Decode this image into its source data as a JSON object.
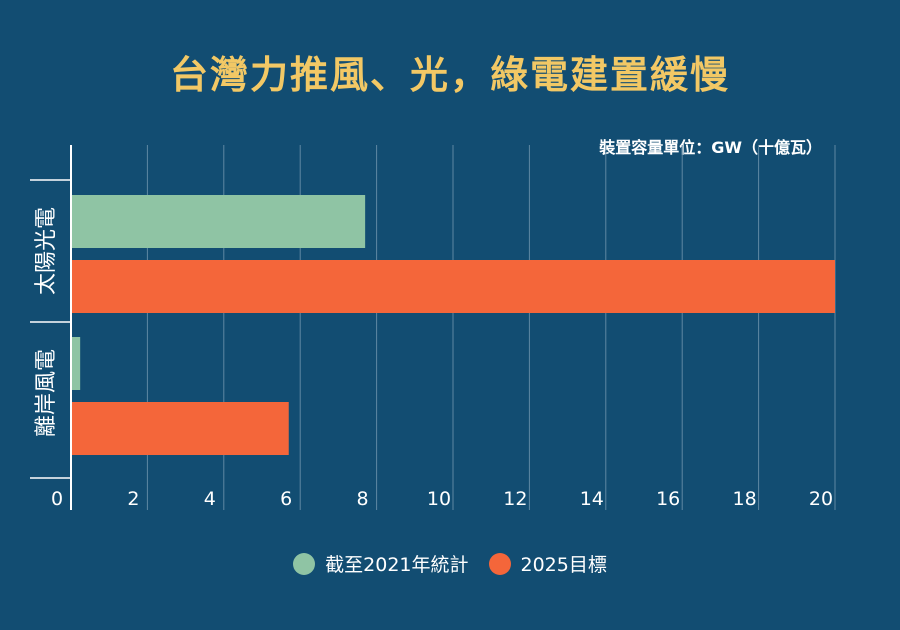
{
  "title": "台灣力推風、光，綠電建置緩慢",
  "unit_note": "裝置容量單位：GW（十億瓦）",
  "chart_data": {
    "type": "bar",
    "orientation": "horizontal",
    "categories": [
      "太陽光電",
      "離岸風電"
    ],
    "series": [
      {
        "name": "截至2021年統計",
        "values": [
          7.7,
          0.24
        ],
        "color": "#8fc4a4"
      },
      {
        "name": "2025目標",
        "values": [
          20,
          5.7
        ],
        "color": "#f4663a"
      }
    ],
    "xticks": [
      0,
      2,
      4,
      6,
      8,
      10,
      12,
      14,
      16,
      18,
      20
    ],
    "xlim": [
      0,
      20
    ],
    "grid": true,
    "legend_position": "bottom-center"
  }
}
